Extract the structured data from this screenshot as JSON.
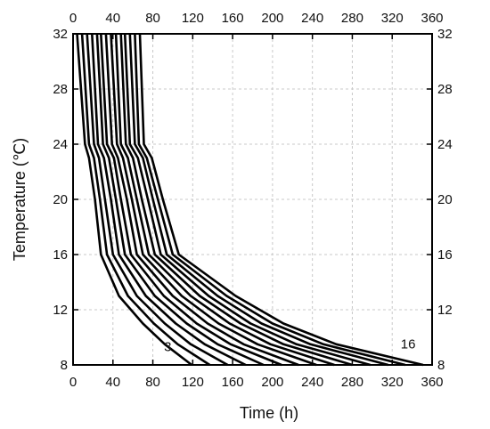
{
  "chart_data": {
    "type": "line",
    "xlabel": "Time (h)",
    "ylabel": "Temperature (℃)",
    "xlim": [
      0,
      360
    ],
    "ylim": [
      8,
      32
    ],
    "x_ticks": [
      0,
      40,
      80,
      120,
      160,
      200,
      240,
      280,
      320,
      360
    ],
    "y_ticks": [
      8,
      12,
      16,
      20,
      24,
      28,
      32
    ],
    "grid": true,
    "line_color": "#000000",
    "grid_color": "#c8c8c8",
    "annotations": [
      {
        "text": "3",
        "x": 95,
        "y": 9
      },
      {
        "text": "16",
        "x": 336,
        "y": 9.2
      }
    ],
    "series": [
      {
        "points": [
          [
            4,
            32
          ],
          [
            12,
            24
          ],
          [
            16,
            23
          ],
          [
            22,
            20
          ],
          [
            28,
            16
          ],
          [
            46,
            13
          ],
          [
            70,
            11
          ],
          [
            92,
            9.5
          ],
          [
            119,
            8
          ]
        ]
      },
      {
        "points": [
          [
            9,
            32
          ],
          [
            16,
            24
          ],
          [
            21,
            23
          ],
          [
            27,
            20
          ],
          [
            34,
            16
          ],
          [
            55,
            13
          ],
          [
            81,
            11
          ],
          [
            105,
            9.5
          ],
          [
            137,
            8
          ]
        ]
      },
      {
        "points": [
          [
            14,
            32
          ],
          [
            21,
            24
          ],
          [
            26,
            23
          ],
          [
            32,
            20
          ],
          [
            40,
            16
          ],
          [
            64,
            13
          ],
          [
            92,
            11
          ],
          [
            118,
            9.5
          ],
          [
            155,
            8
          ]
        ]
      },
      {
        "points": [
          [
            19,
            32
          ],
          [
            25,
            24
          ],
          [
            31,
            23
          ],
          [
            38,
            20
          ],
          [
            46,
            16
          ],
          [
            73,
            13
          ],
          [
            103,
            11
          ],
          [
            132,
            9.5
          ],
          [
            173,
            8
          ]
        ]
      },
      {
        "points": [
          [
            24,
            32
          ],
          [
            30,
            24
          ],
          [
            36,
            23
          ],
          [
            43,
            20
          ],
          [
            52,
            16
          ],
          [
            82,
            13
          ],
          [
            114,
            11
          ],
          [
            145,
            9.5
          ],
          [
            191,
            8
          ]
        ]
      },
      {
        "points": [
          [
            28,
            32
          ],
          [
            34,
            24
          ],
          [
            41,
            23
          ],
          [
            48,
            20
          ],
          [
            58,
            16
          ],
          [
            91,
            13
          ],
          [
            124,
            11
          ],
          [
            158,
            9.5
          ],
          [
            209,
            8
          ]
        ]
      },
      {
        "points": [
          [
            33,
            32
          ],
          [
            39,
            24
          ],
          [
            45,
            23
          ],
          [
            54,
            20
          ],
          [
            64,
            16
          ],
          [
            100,
            13
          ],
          [
            135,
            11
          ],
          [
            171,
            9.5
          ],
          [
            226,
            8
          ]
        ]
      },
      {
        "points": [
          [
            38,
            32
          ],
          [
            44,
            24
          ],
          [
            50,
            23
          ],
          [
            59,
            20
          ],
          [
            70,
            16
          ],
          [
            109,
            13
          ],
          [
            146,
            11
          ],
          [
            185,
            9.5
          ],
          [
            244,
            8
          ]
        ]
      },
      {
        "points": [
          [
            43,
            32
          ],
          [
            48,
            24
          ],
          [
            55,
            23
          ],
          [
            64,
            20
          ],
          [
            76,
            16
          ],
          [
            118,
            13
          ],
          [
            157,
            11
          ],
          [
            198,
            9.5
          ],
          [
            262,
            8
          ]
        ]
      },
      {
        "points": [
          [
            48,
            32
          ],
          [
            53,
            24
          ],
          [
            60,
            23
          ],
          [
            69,
            20
          ],
          [
            82,
            16
          ],
          [
            127,
            13
          ],
          [
            168,
            11
          ],
          [
            211,
            9.5
          ],
          [
            280,
            8
          ]
        ]
      },
      {
        "points": [
          [
            52,
            32
          ],
          [
            57,
            24
          ],
          [
            65,
            23
          ],
          [
            75,
            20
          ],
          [
            88,
            16
          ],
          [
            136,
            13
          ],
          [
            178,
            11
          ],
          [
            224,
            9.5
          ],
          [
            298,
            8
          ]
        ]
      },
      {
        "points": [
          [
            57,
            32
          ],
          [
            62,
            24
          ],
          [
            70,
            23
          ],
          [
            80,
            20
          ],
          [
            94,
            16
          ],
          [
            145,
            13
          ],
          [
            189,
            11
          ],
          [
            238,
            9.5
          ],
          [
            316,
            8
          ]
        ]
      },
      {
        "points": [
          [
            62,
            32
          ],
          [
            66,
            24
          ],
          [
            74,
            23
          ],
          [
            85,
            20
          ],
          [
            100,
            16
          ],
          [
            154,
            13
          ],
          [
            200,
            11
          ],
          [
            251,
            9.5
          ],
          [
            333,
            8
          ]
        ]
      },
      {
        "points": [
          [
            67,
            32
          ],
          [
            71,
            24
          ],
          [
            79,
            23
          ],
          [
            90,
            20
          ],
          [
            106,
            16
          ],
          [
            163,
            13
          ],
          [
            211,
            11
          ],
          [
            264,
            9.5
          ],
          [
            351,
            8
          ]
        ]
      }
    ]
  }
}
